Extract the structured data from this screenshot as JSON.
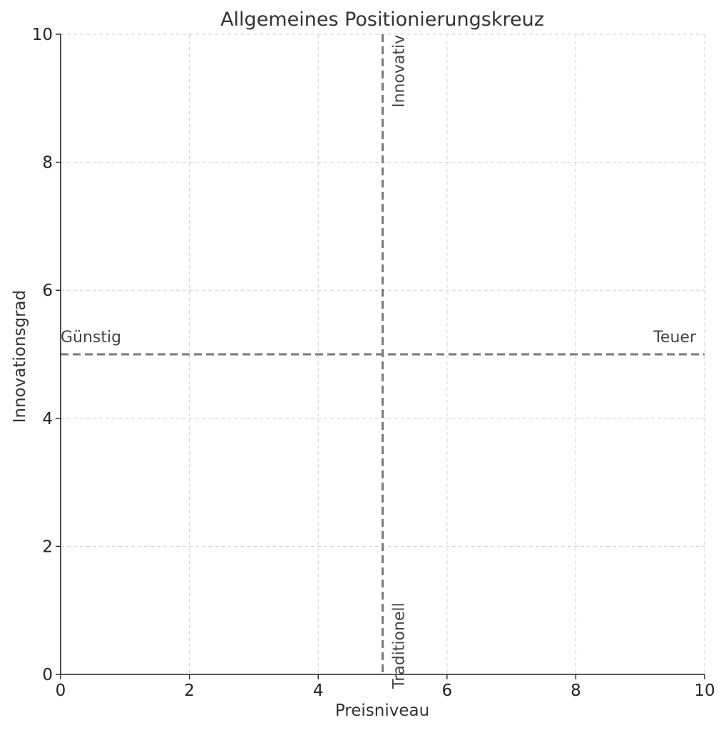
{
  "chart_data": {
    "type": "scatter",
    "title": "Allgemeines Positionierungskreuz",
    "xlabel": "Preisniveau",
    "ylabel": "Innovationsgrad",
    "xlim": [
      0,
      10
    ],
    "ylim": [
      0,
      10
    ],
    "xticks": [
      0,
      2,
      4,
      6,
      8,
      10
    ],
    "yticks": [
      0,
      2,
      4,
      6,
      8,
      10
    ],
    "xtick_labels": [
      "0",
      "2",
      "4",
      "6",
      "8",
      "10"
    ],
    "ytick_labels": [
      "0",
      "2",
      "4",
      "6",
      "8",
      "10"
    ],
    "grid": true,
    "series": [],
    "reference_lines": [
      {
        "orientation": "horizontal",
        "y": 5,
        "style": "dashed",
        "color": "#7a7a7a"
      },
      {
        "orientation": "vertical",
        "x": 5,
        "style": "dashed",
        "color": "#7a7a7a"
      }
    ],
    "annotations": [
      {
        "text": "Günstig",
        "x": 0,
        "y": 5,
        "rotation": 0
      },
      {
        "text": "Teuer",
        "x": 10,
        "y": 5,
        "rotation": 0
      },
      {
        "text": "Innovativ",
        "x": 5,
        "y": 10,
        "rotation": 90
      },
      {
        "text": "Traditionell",
        "x": 5,
        "y": 0,
        "rotation": 90
      }
    ]
  }
}
